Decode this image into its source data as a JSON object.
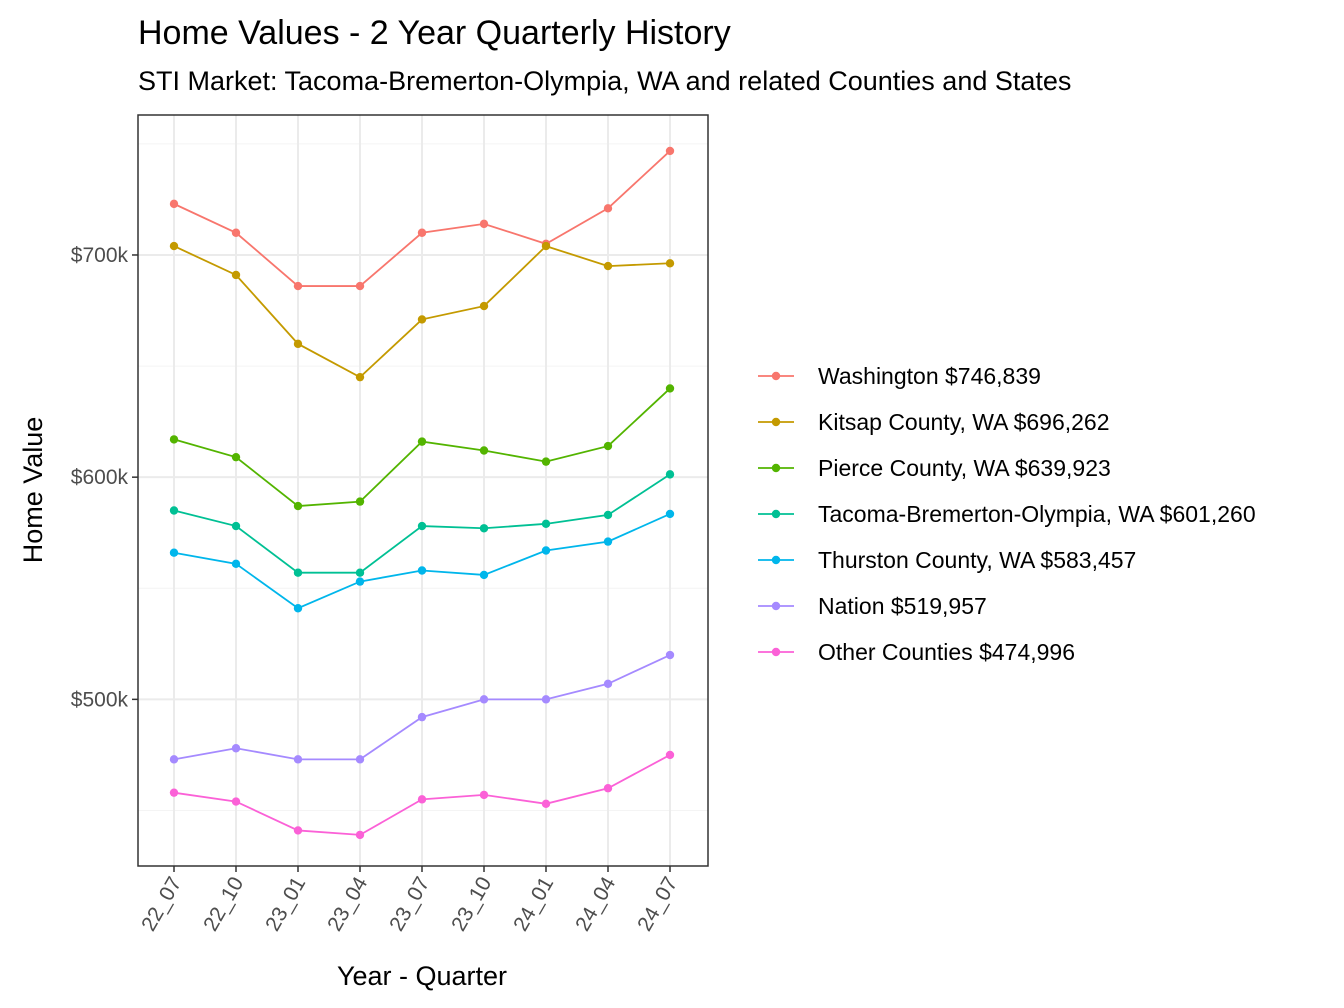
{
  "chart_data": {
    "type": "line",
    "title": "Home Values - 2 Year Quarterly History",
    "subtitle": "STI Market: Tacoma-Bremerton-Olympia, WA and related Counties and States",
    "xlabel": "Year - Quarter",
    "ylabel": "Home Value",
    "categories": [
      "22_07",
      "22_10",
      "23_01",
      "23_04",
      "23_07",
      "23_10",
      "24_01",
      "24_04",
      "24_07"
    ],
    "ylim": [
      425000,
      763000
    ],
    "yticks": [
      {
        "value": 500000,
        "label": "$500k"
      },
      {
        "value": 600000,
        "label": "$600k"
      },
      {
        "value": 700000,
        "label": "$700k"
      }
    ],
    "grid": true,
    "legend_position": "right",
    "series": [
      {
        "name": "Washington $746,839",
        "color": "#F8766D",
        "values": [
          723000,
          710000,
          686000,
          686000,
          710000,
          714000,
          705000,
          721000,
          746839
        ]
      },
      {
        "name": "Kitsap County, WA $696,262",
        "color": "#C49A00",
        "values": [
          704000,
          691000,
          660000,
          645000,
          671000,
          677000,
          704000,
          695000,
          696262
        ]
      },
      {
        "name": "Pierce County, WA $639,923",
        "color": "#53B400",
        "values": [
          617000,
          609000,
          587000,
          589000,
          616000,
          612000,
          607000,
          614000,
          639923
        ]
      },
      {
        "name": "Tacoma-Bremerton-Olympia, WA $601,260",
        "color": "#00C094",
        "values": [
          585000,
          578000,
          557000,
          557000,
          578000,
          577000,
          579000,
          583000,
          601260
        ]
      },
      {
        "name": "Thurston County, WA $583,457",
        "color": "#00B6EB",
        "values": [
          566000,
          561000,
          541000,
          553000,
          558000,
          556000,
          567000,
          571000,
          583457
        ]
      },
      {
        "name": "Nation $519,957",
        "color": "#A58AFF",
        "values": [
          473000,
          478000,
          473000,
          473000,
          492000,
          500000,
          500000,
          507000,
          519957
        ]
      },
      {
        "name": "Other Counties $474,996",
        "color": "#FB61D7",
        "values": [
          458000,
          454000,
          441000,
          439000,
          455000,
          457000,
          453000,
          460000,
          474996
        ]
      }
    ]
  }
}
